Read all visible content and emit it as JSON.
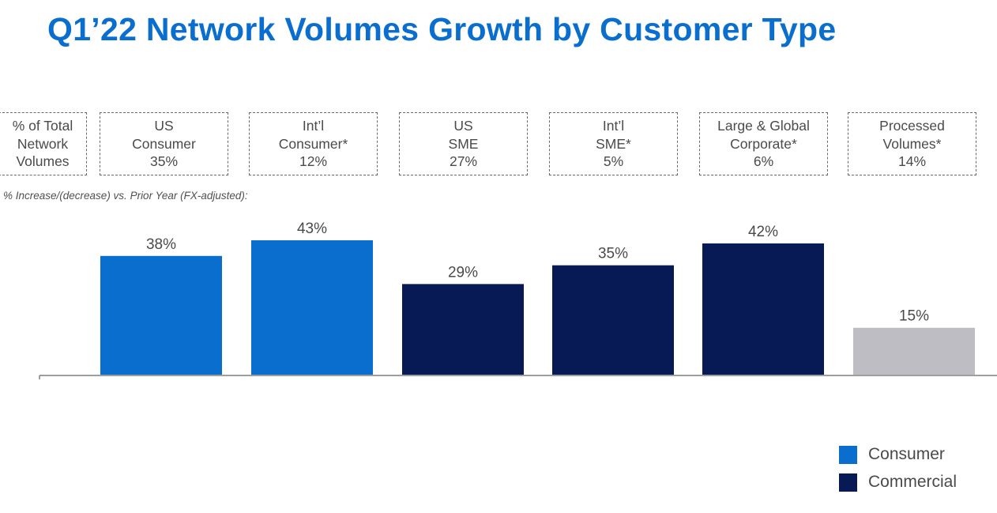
{
  "title": "Q1’22 Network Volumes Growth by Customer Type",
  "header_box": {
    "lines": [
      "% of Total",
      "Network",
      "Volumes"
    ]
  },
  "segments": [
    {
      "lines": [
        "US",
        "Consumer",
        "35%"
      ]
    },
    {
      "lines": [
        "Int’l",
        "Consumer*",
        "12%"
      ]
    },
    {
      "lines": [
        "US",
        "SME",
        "27%"
      ]
    },
    {
      "lines": [
        "Int’l",
        "SME*",
        "5%"
      ]
    },
    {
      "lines": [
        "Large & Global",
        "Corporate*",
        "6%"
      ]
    },
    {
      "lines": [
        "Processed",
        "Volumes*",
        "14%"
      ]
    }
  ],
  "subtitle": "% Increase/(decrease)  vs. Prior Year (FX-adjusted):",
  "colors": {
    "title": "#0a6ecf",
    "consumer": "#0a6ecf",
    "commercial": "#081a56",
    "processed": "#bebdc4"
  },
  "legend": [
    {
      "label": "Consumer",
      "color": "#0a6ecf"
    },
    {
      "label": "Commercial",
      "color": "#081a56"
    }
  ],
  "chart_data": {
    "type": "bar",
    "categories": [
      "US Consumer",
      "Int’l Consumer*",
      "US SME",
      "Int’l SME*",
      "Large & Global Corporate*",
      "Processed Volumes*"
    ],
    "values": [
      38,
      43,
      29,
      35,
      42,
      15
    ],
    "value_labels": [
      "38%",
      "43%",
      "29%",
      "35%",
      "42%",
      "15%"
    ],
    "bar_groups": [
      "Consumer",
      "Consumer",
      "Commercial",
      "Commercial",
      "Commercial",
      "Processed"
    ],
    "title": "",
    "xlabel": "",
    "ylabel": "",
    "ylim": [
      0,
      43
    ],
    "grid": false,
    "legend_position": "bottom-right"
  }
}
